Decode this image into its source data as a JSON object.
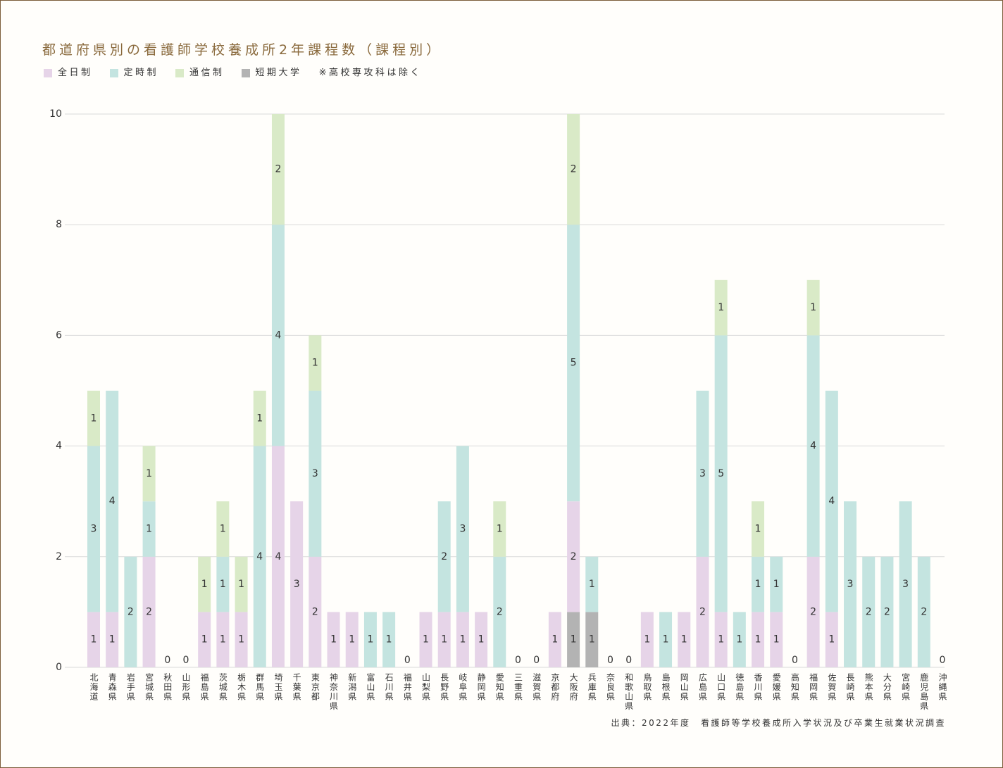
{
  "title": "都道府県別の看護師学校養成所2年課程数（課程別）",
  "title_color": "#8a6a3d",
  "legend_note": "※高校専攻科は除く",
  "source": "出典：2022年度　看護師等学校養成所入学状況及び卒業生就業状況調査",
  "chart_data": {
    "type": "bar",
    "stacked": true,
    "title": "都道府県別の看護師学校養成所2年課程数（課程別）",
    "xlabel": "",
    "ylabel": "",
    "ylim": [
      0,
      10
    ],
    "yticks": [
      0,
      2,
      4,
      6,
      8,
      10
    ],
    "grid": true,
    "legend_position": "top-left",
    "categories": [
      "北海道",
      "青森県",
      "岩手県",
      "宮城県",
      "秋田県",
      "山形県",
      "福島県",
      "茨城県",
      "栃木県",
      "群馬県",
      "埼玉県",
      "千葉県",
      "東京都",
      "神奈川県",
      "新潟県",
      "富山県",
      "石川県",
      "福井県",
      "山梨県",
      "長野県",
      "岐阜県",
      "静岡県",
      "愛知県",
      "三重県",
      "滋賀県",
      "京都府",
      "大阪府",
      "兵庫県",
      "奈良県",
      "和歌山県",
      "鳥取県",
      "島根県",
      "岡山県",
      "広島県",
      "山口県",
      "徳島県",
      "香川県",
      "愛媛県",
      "高知県",
      "福岡県",
      "佐賀県",
      "長崎県",
      "熊本県",
      "大分県",
      "宮崎県",
      "鹿児島県",
      "沖縄県"
    ],
    "series": [
      {
        "name": "全日制",
        "color": "#e6d4e8",
        "values": [
          1,
          1,
          0,
          2,
          0,
          0,
          1,
          1,
          1,
          0,
          4,
          3,
          2,
          1,
          1,
          0,
          0,
          0,
          1,
          1,
          1,
          1,
          0,
          0,
          0,
          1,
          2,
          0,
          0,
          0,
          1,
          0,
          1,
          2,
          1,
          0,
          1,
          1,
          0,
          2,
          1,
          0,
          0,
          0,
          0,
          0,
          0
        ]
      },
      {
        "name": "定時制",
        "color": "#c4e4e0",
        "values": [
          3,
          4,
          2,
          1,
          0,
          0,
          0,
          1,
          0,
          4,
          4,
          0,
          3,
          0,
          0,
          1,
          1,
          0,
          0,
          2,
          3,
          0,
          2,
          0,
          0,
          0,
          5,
          1,
          0,
          0,
          0,
          1,
          0,
          3,
          5,
          1,
          1,
          1,
          0,
          4,
          4,
          3,
          2,
          2,
          3,
          2,
          0
        ]
      },
      {
        "name": "通信制",
        "color": "#d9eac7",
        "values": [
          1,
          0,
          0,
          1,
          0,
          0,
          1,
          1,
          1,
          1,
          2,
          0,
          1,
          0,
          0,
          0,
          0,
          0,
          0,
          0,
          0,
          0,
          1,
          0,
          0,
          0,
          2,
          0,
          0,
          0,
          0,
          0,
          0,
          0,
          1,
          0,
          1,
          0,
          0,
          1,
          0,
          0,
          0,
          0,
          0,
          0,
          0
        ]
      },
      {
        "name": "短期大学",
        "color": "#b3b3b3",
        "values": [
          0,
          0,
          0,
          0,
          0,
          0,
          0,
          0,
          0,
          0,
          0,
          0,
          0,
          0,
          0,
          0,
          0,
          0,
          0,
          0,
          0,
          0,
          0,
          0,
          0,
          0,
          1,
          1,
          0,
          0,
          0,
          0,
          0,
          0,
          0,
          0,
          0,
          0,
          0,
          0,
          0,
          0,
          0,
          0,
          0,
          0,
          0
        ]
      }
    ]
  }
}
